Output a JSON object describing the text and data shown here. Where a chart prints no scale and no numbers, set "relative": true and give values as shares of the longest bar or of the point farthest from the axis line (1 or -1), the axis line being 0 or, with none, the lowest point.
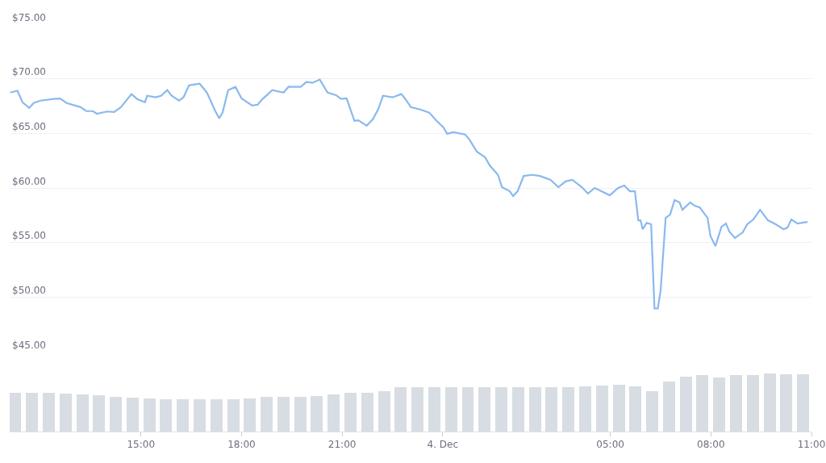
{
  "chart_data": [
    {
      "type": "line",
      "xlim": [
        "--12-03T11:05",
        "--12-04T11:00"
      ],
      "ylim": [
        45,
        75
      ],
      "yticks": [
        {
          "value": 45,
          "label": "$45.00"
        },
        {
          "value": 50,
          "label": "$50.00"
        },
        {
          "value": 55,
          "label": "$55.00"
        },
        {
          "value": 60,
          "label": "$60.00"
        },
        {
          "value": 65,
          "label": "$65.00"
        },
        {
          "value": 70,
          "label": "$70.00"
        },
        {
          "value": 75,
          "label": "$75.00"
        }
      ],
      "grid": "y",
      "tick_labels": "y",
      "marker": "none",
      "line_style": "solid",
      "series": [
        {
          "color": "#8ab9ee",
          "x": [
            "--12-03T11:06",
            "--12-03T11:19",
            "--12-03T11:28",
            "--12-03T11:40",
            "--12-03T11:48",
            "--12-03T12:00",
            "--12-03T12:24",
            "--12-03T12:35",
            "--12-03T12:47",
            "--12-03T13:12",
            "--12-03T13:22",
            "--12-03T13:34",
            "--12-03T13:41",
            "--12-03T13:59",
            "--12-03T14:12",
            "--12-03T14:24",
            "--12-03T14:43",
            "--12-03T14:53",
            "--12-03T15:07",
            "--12-03T15:11",
            "--12-03T15:26",
            "--12-03T15:36",
            "--12-03T15:47",
            "--12-03T15:55",
            "--12-03T16:08",
            "--12-03T16:16",
            "--12-03T16:26",
            "--12-03T16:45",
            "--12-03T16:58",
            "--12-03T17:13",
            "--12-03T17:20",
            "--12-03T17:26",
            "--12-03T17:36",
            "--12-03T17:49",
            "--12-03T18:00",
            "--12-03T18:19",
            "--12-03T18:29",
            "--12-03T18:36",
            "--12-03T18:43",
            "--12-03T18:55",
            "--12-03T19:15",
            "--12-03T19:24",
            "--12-03T19:46",
            "--12-03T19:56",
            "--12-03T20:07",
            "--12-03T20:20",
            "--12-03T20:34",
            "--12-03T20:49",
            "--12-03T20:58",
            "--12-03T21:08",
            "--12-03T21:22",
            "--12-03T21:29",
            "--12-03T21:44",
            "--12-03T21:55",
            "--12-03T22:05",
            "--12-03T22:13",
            "--12-03T22:30",
            "--12-03T22:46",
            "--12-03T22:53",
            "--12-03T23:03",
            "--12-03T23:20",
            "--12-03T23:36",
            "--12-03T23:49",
            "--12-04T00:01",
            "--12-04T00:08",
            "--12-04T00:19",
            "--12-04T00:40",
            "--12-04T00:47",
            "--12-04T01:01",
            "--12-04T01:16",
            "--12-04T01:24",
            "--12-04T01:39",
            "--12-04T01:46",
            "--12-04T02:00",
            "--12-04T02:06",
            "--12-04T02:14",
            "--12-04T02:25",
            "--12-04T02:40",
            "--12-04T02:54",
            "--12-04T03:13",
            "--12-04T03:27",
            "--12-04T03:40",
            "--12-04T03:52",
            "--12-04T04:09",
            "--12-04T04:20",
            "--12-04T04:32",
            "--12-04T04:59",
            "--12-04T05:14",
            "--12-04T05:25",
            "--12-04T05:35",
            "--12-04T05:44",
            "--12-04T05:50",
            "--12-04T05:54",
            "--12-04T05:58",
            "--12-04T06:05",
            "--12-04T06:13",
            "--12-04T06:19",
            "--12-04T06:25",
            "--12-04T06:30",
            "--12-04T06:39",
            "--12-04T06:47",
            "--12-04T06:55",
            "--12-04T07:04",
            "--12-04T07:09",
            "--12-04T07:23",
            "--12-04T07:31",
            "--12-04T07:40",
            "--12-04T07:54",
            "--12-04T07:59",
            "--12-04T08:08",
            "--12-04T08:19",
            "--12-04T08:27",
            "--12-04T08:33",
            "--12-04T08:43",
            "--12-04T08:57",
            "--12-04T09:05",
            "--12-04T09:16",
            "--12-04T09:28",
            "--12-04T09:42",
            "--12-04T09:56",
            "--12-04T10:10",
            "--12-04T10:17",
            "--12-04T10:24",
            "--12-04T10:35",
            "--12-04T10:53"
          ],
          "values": [
            68.74,
            68.9,
            67.85,
            67.33,
            67.78,
            68.0,
            68.15,
            68.2,
            67.78,
            67.4,
            67.04,
            67.04,
            66.8,
            67.0,
            66.96,
            67.4,
            68.6,
            68.15,
            67.85,
            68.44,
            68.3,
            68.44,
            68.96,
            68.44,
            68.0,
            68.3,
            69.4,
            69.55,
            68.74,
            67.04,
            66.37,
            66.9,
            68.96,
            69.26,
            68.2,
            67.55,
            67.63,
            68.07,
            68.4,
            68.96,
            68.74,
            69.26,
            69.26,
            69.7,
            69.63,
            69.93,
            68.74,
            68.5,
            68.15,
            68.2,
            66.15,
            66.2,
            65.7,
            66.3,
            67.26,
            68.44,
            68.3,
            68.6,
            68.15,
            67.4,
            67.19,
            66.9,
            66.15,
            65.56,
            64.96,
            65.1,
            64.9,
            64.5,
            63.33,
            62.8,
            62.07,
            61.2,
            60.07,
            59.7,
            59.26,
            59.7,
            61.1,
            61.2,
            61.1,
            60.74,
            60.07,
            60.6,
            60.74,
            60.07,
            59.48,
            60.0,
            59.33,
            60.0,
            60.22,
            59.7,
            59.7,
            57.04,
            57.04,
            56.22,
            56.8,
            56.67,
            48.96,
            48.96,
            50.6,
            57.26,
            57.56,
            58.89,
            58.67,
            58.0,
            58.67,
            58.37,
            58.22,
            57.26,
            55.63,
            54.67,
            56.44,
            56.74,
            56.0,
            55.41,
            55.93,
            56.67,
            57.11,
            58.0,
            57.04,
            56.67,
            56.22,
            56.37,
            57.11,
            56.74,
            56.89
          ]
        }
      ]
    },
    {
      "type": "bar",
      "relative": true,
      "xlim": [
        "--12-03T11:05",
        "--12-04T11:00"
      ],
      "tick_labels": "x",
      "xticks": [
        {
          "value": "--12-03T15:00",
          "label": "15:00"
        },
        {
          "value": "--12-03T18:00",
          "label": "18:00"
        },
        {
          "value": "--12-03T21:00",
          "label": "21:00"
        },
        {
          "value": "--12-04T00:00",
          "label": "4. Dec"
        },
        {
          "value": "--12-04T05:00",
          "label": "05:00"
        },
        {
          "value": "--12-04T08:00",
          "label": "08:00"
        },
        {
          "value": "--12-04T11:00",
          "label": "11:00"
        }
      ],
      "series": [
        {
          "color": "#d8dce3",
          "x": [
            "--12-03T11:15",
            "--12-03T11:45",
            "--12-03T12:15",
            "--12-03T12:45",
            "--12-03T13:15",
            "--12-03T13:45",
            "--12-03T14:15",
            "--12-03T14:45",
            "--12-03T15:15",
            "--12-03T15:45",
            "--12-03T16:15",
            "--12-03T16:45",
            "--12-03T17:15",
            "--12-03T17:45",
            "--12-03T18:15",
            "--12-03T18:45",
            "--12-03T19:15",
            "--12-03T19:45",
            "--12-03T20:15",
            "--12-03T20:45",
            "--12-03T21:15",
            "--12-03T21:45",
            "--12-03T22:15",
            "--12-03T22:45",
            "--12-03T23:15",
            "--12-03T23:45",
            "--12-04T00:15",
            "--12-04T00:45",
            "--12-04T01:15",
            "--12-04T01:45",
            "--12-04T02:15",
            "--12-04T02:45",
            "--12-04T03:15",
            "--12-04T03:45",
            "--12-04T04:15",
            "--12-04T04:45",
            "--12-04T05:15",
            "--12-04T05:45",
            "--12-04T06:15",
            "--12-04T06:45",
            "--12-04T07:15",
            "--12-04T07:45",
            "--12-04T08:15",
            "--12-04T08:45",
            "--12-04T09:15",
            "--12-04T09:45",
            "--12-04T10:15",
            "--12-04T10:45"
          ],
          "values": [
            0.66,
            0.66,
            0.66,
            0.65,
            0.64,
            0.62,
            0.6,
            0.59,
            0.57,
            0.56,
            0.56,
            0.56,
            0.56,
            0.55,
            0.57,
            0.6,
            0.6,
            0.6,
            0.61,
            0.64,
            0.66,
            0.67,
            0.7,
            0.76,
            0.77,
            0.77,
            0.76,
            0.76,
            0.76,
            0.76,
            0.77,
            0.77,
            0.77,
            0.77,
            0.78,
            0.79,
            0.8,
            0.78,
            0.69,
            0.86,
            0.95,
            0.97,
            0.93,
            0.97,
            0.97,
            1.0,
            0.99,
            0.99
          ]
        }
      ]
    }
  ]
}
